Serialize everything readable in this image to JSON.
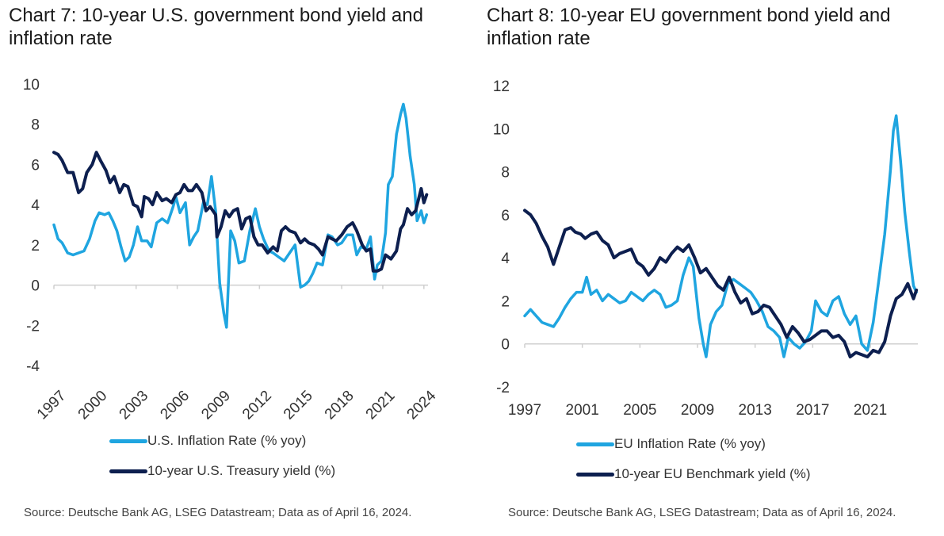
{
  "colors": {
    "inflation": "#1fa5e0",
    "yield": "#0d1f4f",
    "axis": "#cfcfcf",
    "text": "#333333"
  },
  "chart_data": [
    {
      "type": "line",
      "title": "Chart 7: 10-year U.S. government bond yield and inflation rate",
      "xlabel": "",
      "ylabel": "",
      "xlim": [
        1997,
        2024.3
      ],
      "ylim": [
        -4,
        10
      ],
      "y_ticks": [
        10,
        8,
        6,
        4,
        2,
        0,
        -2,
        -4
      ],
      "x_ticks": [
        1997,
        2000,
        2003,
        2006,
        2009,
        2012,
        2015,
        2018,
        2021,
        2024
      ],
      "x_ticks_rotated": true,
      "grid": false,
      "legend_position": "bottom-left",
      "source": "Source: Deutsche Bank AG, LSEG Datastream; Data as of April 16, 2024.",
      "series": [
        {
          "name": "U.S. Inflation Rate (% yoy)",
          "color_key": "inflation",
          "x": [
            1997,
            1997.3,
            1997.6,
            1998,
            1998.4,
            1998.8,
            1999.2,
            1999.6,
            2000,
            2000.3,
            2000.7,
            2001,
            2001.3,
            2001.6,
            2001.9,
            2002.2,
            2002.5,
            2002.8,
            2003.1,
            2003.4,
            2003.8,
            2004.1,
            2004.5,
            2004.9,
            2005.3,
            2005.7,
            2005.9,
            2006.2,
            2006.6,
            2006.9,
            2007.2,
            2007.5,
            2007.9,
            2008.2,
            2008.5,
            2008.8,
            2009.1,
            2009.4,
            2009.6,
            2009.9,
            2010.2,
            2010.5,
            2010.9,
            2011.3,
            2011.7,
            2012,
            2012.3,
            2012.7,
            2013,
            2013.4,
            2013.8,
            2014.2,
            2014.6,
            2015,
            2015.3,
            2015.6,
            2015.9,
            2016.2,
            2016.6,
            2017,
            2017.3,
            2017.7,
            2018,
            2018.4,
            2018.8,
            2019.1,
            2019.4,
            2019.8,
            2020.1,
            2020.4,
            2020.6,
            2020.9,
            2021.2,
            2021.4,
            2021.7,
            2022,
            2022.3,
            2022.5,
            2022.7,
            2023,
            2023.3,
            2023.5,
            2023.8,
            2024,
            2024.2
          ],
          "y": [
            3.0,
            2.3,
            2.1,
            1.6,
            1.5,
            1.6,
            1.7,
            2.3,
            3.2,
            3.6,
            3.5,
            3.6,
            3.2,
            2.7,
            1.9,
            1.2,
            1.4,
            2.0,
            2.9,
            2.2,
            2.2,
            1.9,
            3.1,
            3.3,
            3.1,
            3.9,
            4.4,
            3.6,
            4.1,
            2.0,
            2.4,
            2.7,
            4.1,
            4.0,
            5.4,
            3.7,
            0.1,
            -1.4,
            -2.1,
            2.7,
            2.2,
            1.1,
            1.2,
            2.7,
            3.8,
            2.9,
            2.3,
            1.7,
            1.6,
            1.4,
            1.2,
            1.6,
            2.0,
            -0.1,
            0.0,
            0.2,
            0.6,
            1.1,
            1.0,
            2.5,
            2.4,
            2.0,
            2.1,
            2.5,
            2.5,
            1.5,
            1.9,
            1.8,
            2.4,
            0.3,
            1.0,
            1.2,
            2.6,
            5.0,
            5.4,
            7.5,
            8.5,
            9.0,
            8.3,
            6.4,
            5.0,
            3.2,
            3.7,
            3.1,
            3.5
          ]
        },
        {
          "name": "10-year U.S. Treasury yield (%)",
          "color_key": "yield",
          "x": [
            1997,
            1997.3,
            1997.6,
            1998,
            1998.4,
            1998.8,
            1999.1,
            1999.4,
            1999.8,
            2000.1,
            2000.4,
            2000.8,
            2001.1,
            2001.4,
            2001.8,
            2002.1,
            2002.4,
            2002.8,
            2003.1,
            2003.4,
            2003.6,
            2003.9,
            2004.2,
            2004.5,
            2004.9,
            2005.2,
            2005.6,
            2005.9,
            2006.2,
            2006.5,
            2006.8,
            2007.1,
            2007.4,
            2007.8,
            2008.1,
            2008.4,
            2008.8,
            2008.9,
            2009.2,
            2009.5,
            2009.8,
            2010.1,
            2010.4,
            2010.7,
            2011,
            2011.3,
            2011.6,
            2011.9,
            2012.2,
            2012.6,
            2013,
            2013.3,
            2013.6,
            2013.9,
            2014.2,
            2014.6,
            2015,
            2015.3,
            2015.6,
            2016,
            2016.3,
            2016.6,
            2017,
            2017.3,
            2017.6,
            2018,
            2018.4,
            2018.8,
            2019.1,
            2019.5,
            2019.8,
            2020.1,
            2020.3,
            2020.6,
            2020.9,
            2021.2,
            2021.6,
            2022,
            2022.3,
            2022.5,
            2022.8,
            2023.1,
            2023.4,
            2023.8,
            2024,
            2024.2
          ],
          "y": [
            6.6,
            6.5,
            6.2,
            5.6,
            5.6,
            4.6,
            4.8,
            5.6,
            6.0,
            6.6,
            6.2,
            5.7,
            5.1,
            5.4,
            4.6,
            5.0,
            4.9,
            4.0,
            3.9,
            3.4,
            4.4,
            4.3,
            4.0,
            4.6,
            4.2,
            4.3,
            4.1,
            4.5,
            4.6,
            5.0,
            4.7,
            4.7,
            5.0,
            4.6,
            3.7,
            3.9,
            3.5,
            2.4,
            2.9,
            3.7,
            3.4,
            3.7,
            3.8,
            2.8,
            3.3,
            3.4,
            2.4,
            2.0,
            2.0,
            1.6,
            1.9,
            1.7,
            2.7,
            2.9,
            2.7,
            2.6,
            2.1,
            2.3,
            2.1,
            2.0,
            1.8,
            1.5,
            2.4,
            2.3,
            2.2,
            2.5,
            2.9,
            3.1,
            2.7,
            2.0,
            1.7,
            1.8,
            0.7,
            0.7,
            0.8,
            1.5,
            1.3,
            1.7,
            2.8,
            3.0,
            3.8,
            3.5,
            3.7,
            4.8,
            4.1,
            4.5
          ]
        }
      ]
    },
    {
      "type": "line",
      "title": "Chart 8: 10-year EU government bond yield and inflation rate",
      "xlabel": "",
      "ylabel": "",
      "xlim": [
        1997,
        2024.3
      ],
      "ylim": [
        -2,
        12
      ],
      "y_ticks": [
        12,
        10,
        8,
        6,
        4,
        2,
        0,
        -2
      ],
      "x_ticks": [
        1997,
        2001,
        2005,
        2009,
        2013,
        2017,
        2021
      ],
      "x_ticks_rotated": false,
      "grid": false,
      "legend_position": "bottom-left",
      "source": "Source: Deutsche Bank AG, LSEG Datastream; Data as of April 16, 2024.",
      "series": [
        {
          "name": "EU Inflation Rate (% yoy)",
          "color_key": "inflation",
          "x": [
            1997,
            1997.4,
            1997.8,
            1998.2,
            1998.6,
            1999,
            1999.4,
            1999.8,
            2000.2,
            2000.6,
            2001,
            2001.3,
            2001.6,
            2002,
            2002.4,
            2002.8,
            2003.2,
            2003.6,
            2004,
            2004.4,
            2004.8,
            2005.2,
            2005.6,
            2006,
            2006.4,
            2006.8,
            2007.2,
            2007.6,
            2008,
            2008.4,
            2008.7,
            2009.1,
            2009.4,
            2009.6,
            2009.9,
            2010.3,
            2010.7,
            2011.1,
            2011.5,
            2011.9,
            2012.3,
            2012.7,
            2013.1,
            2013.5,
            2013.9,
            2014.3,
            2014.7,
            2015,
            2015.3,
            2015.7,
            2016.1,
            2016.5,
            2016.9,
            2017.2,
            2017.6,
            2018,
            2018.4,
            2018.8,
            2019.2,
            2019.6,
            2020,
            2020.4,
            2020.8,
            2021.2,
            2021.6,
            2022,
            2022.4,
            2022.6,
            2022.8,
            2023.1,
            2023.4,
            2023.7,
            2024,
            2024.2
          ],
          "y": [
            1.3,
            1.6,
            1.3,
            1.0,
            0.9,
            0.8,
            1.2,
            1.7,
            2.1,
            2.4,
            2.4,
            3.1,
            2.3,
            2.5,
            2.0,
            2.3,
            2.1,
            1.9,
            2.0,
            2.4,
            2.2,
            2.0,
            2.3,
            2.5,
            2.3,
            1.7,
            1.8,
            2.0,
            3.2,
            4.0,
            3.6,
            1.2,
            0.0,
            -0.6,
            0.9,
            1.5,
            1.8,
            2.8,
            3.0,
            2.8,
            2.6,
            2.4,
            2.0,
            1.5,
            0.8,
            0.6,
            0.3,
            -0.6,
            0.3,
            0.0,
            -0.2,
            0.1,
            0.6,
            2.0,
            1.5,
            1.3,
            2.0,
            2.2,
            1.4,
            0.9,
            1.3,
            0.0,
            -0.3,
            1.0,
            3.0,
            5.1,
            8.1,
            9.9,
            10.6,
            8.5,
            6.1,
            4.3,
            2.7,
            2.4
          ]
        },
        {
          "name": "10-year EU Benchmark yield (%)",
          "color_key": "yield",
          "x": [
            1997,
            1997.4,
            1997.8,
            1998.2,
            1998.6,
            1999,
            1999.4,
            1999.8,
            2000.2,
            2000.5,
            2000.9,
            2001.2,
            2001.6,
            2002,
            2002.4,
            2002.8,
            2003.2,
            2003.6,
            2004,
            2004.4,
            2004.8,
            2005.2,
            2005.6,
            2006,
            2006.4,
            2006.8,
            2007.2,
            2007.6,
            2008,
            2008.4,
            2008.8,
            2009.2,
            2009.6,
            2010,
            2010.4,
            2010.8,
            2011.2,
            2011.6,
            2012,
            2012.4,
            2012.8,
            2013.2,
            2013.6,
            2014,
            2014.4,
            2014.8,
            2015.2,
            2015.6,
            2016,
            2016.4,
            2016.8,
            2017.2,
            2017.6,
            2018,
            2018.4,
            2018.8,
            2019.2,
            2019.6,
            2020,
            2020.4,
            2020.8,
            2021.2,
            2021.6,
            2022,
            2022.4,
            2022.8,
            2023.2,
            2023.6,
            2024,
            2024.2
          ],
          "y": [
            6.2,
            6.0,
            5.6,
            5.0,
            4.5,
            3.7,
            4.5,
            5.3,
            5.4,
            5.2,
            5.1,
            4.9,
            5.1,
            5.2,
            4.8,
            4.6,
            4.0,
            4.2,
            4.3,
            4.4,
            3.8,
            3.6,
            3.2,
            3.5,
            4.0,
            3.8,
            4.2,
            4.5,
            4.3,
            4.6,
            4.0,
            3.3,
            3.5,
            3.1,
            2.7,
            2.5,
            3.1,
            2.4,
            1.9,
            2.1,
            1.4,
            1.5,
            1.8,
            1.7,
            1.3,
            0.9,
            0.3,
            0.8,
            0.5,
            0.1,
            0.2,
            0.4,
            0.6,
            0.6,
            0.3,
            0.4,
            0.1,
            -0.6,
            -0.4,
            -0.5,
            -0.6,
            -0.3,
            -0.4,
            0.1,
            1.3,
            2.1,
            2.3,
            2.8,
            2.1,
            2.5
          ]
        }
      ]
    }
  ]
}
